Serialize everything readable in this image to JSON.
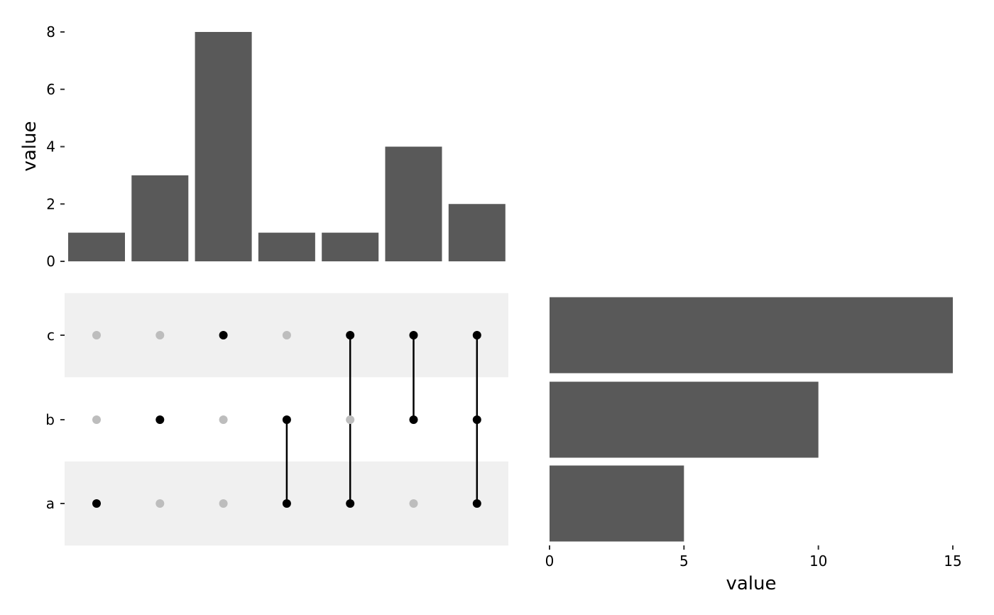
{
  "chart_data": [
    {
      "type": "bar",
      "orientation": "vertical",
      "panel": "intersection sizes",
      "ylabel": "value",
      "xlabel": "",
      "ylim": [
        0,
        8
      ],
      "yticks": [
        0,
        2,
        4,
        6,
        8
      ],
      "intersections": [
        {
          "members": [
            "a"
          ],
          "value": 1
        },
        {
          "members": [
            "b"
          ],
          "value": 3
        },
        {
          "members": [
            "c"
          ],
          "value": 8
        },
        {
          "members": [
            "a",
            "b"
          ],
          "value": 1
        },
        {
          "members": [
            "a",
            "c"
          ],
          "value": 1
        },
        {
          "members": [
            "b",
            "c"
          ],
          "value": 4
        },
        {
          "members": [
            "a",
            "b",
            "c"
          ],
          "value": 2
        }
      ],
      "values": [
        1,
        3,
        8,
        1,
        1,
        4,
        2
      ],
      "bar_color": "#595959",
      "grid": false
    },
    {
      "type": "scatter",
      "panel": "set membership matrix",
      "sets": [
        "c",
        "b",
        "a"
      ],
      "active_color": "#000000",
      "inactive_color": "#bdbdbd",
      "stripe_color": "#f0f0f0"
    },
    {
      "type": "bar",
      "orientation": "horizontal",
      "panel": "set sizes",
      "categories": [
        "c",
        "b",
        "a"
      ],
      "values": [
        15,
        10,
        5
      ],
      "xlabel": "value",
      "xlim": [
        0,
        15
      ],
      "xticks": [
        0,
        5,
        10,
        15
      ],
      "bar_color": "#595959",
      "grid": false
    }
  ]
}
